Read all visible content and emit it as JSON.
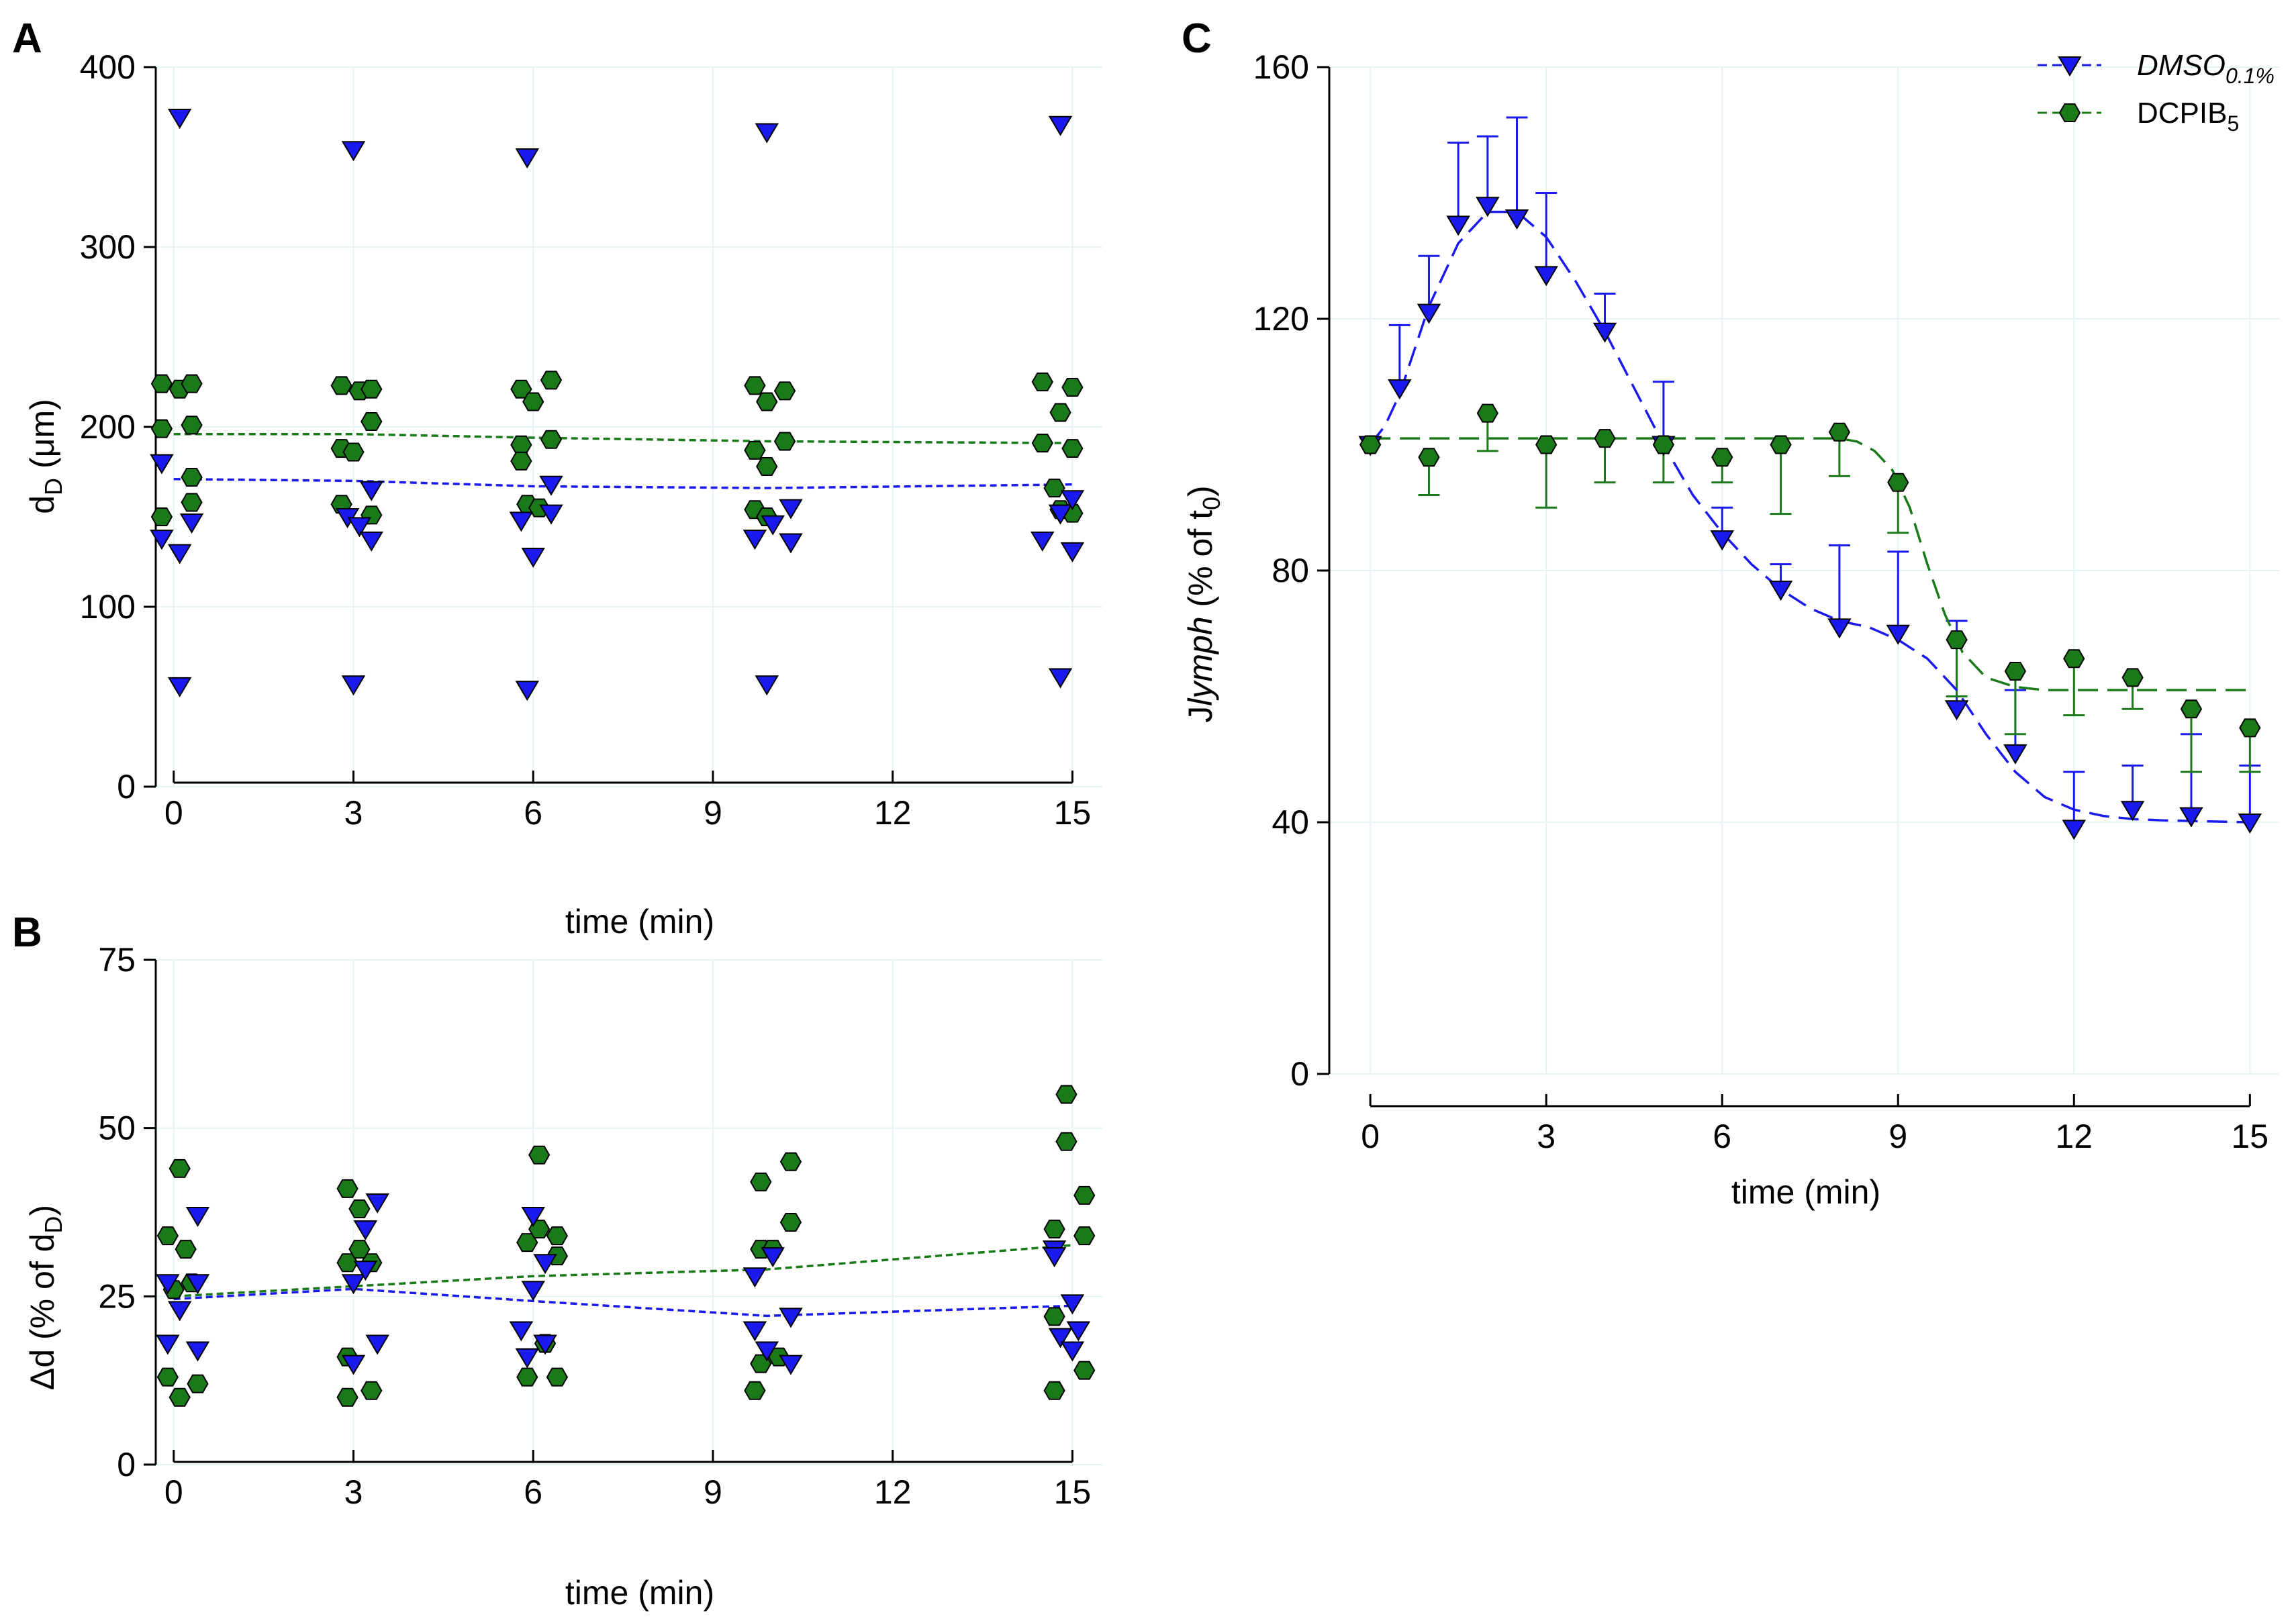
{
  "figure": {
    "panel_labels": [
      "A",
      "B",
      "C"
    ]
  },
  "colors": {
    "dmso": "#1a1aee",
    "dcpib": "#1a7a1a",
    "dmso_line": "#1a1aee",
    "dcpib_line": "#1a7a1a",
    "grid": "#e4f4f4"
  },
  "chart_data": [
    {
      "id": "A",
      "type": "scatter",
      "title": "",
      "xlabel": "time (min)",
      "ylabel_main": "d",
      "ylabel_sub": "D",
      "ylabel_units": "(μm)",
      "xlim": [
        -0.3,
        15.5
      ],
      "ylim": [
        0,
        400
      ],
      "xticks": [
        0,
        3,
        6,
        9,
        12,
        15
      ],
      "yticks": [
        0,
        100,
        200,
        300,
        400
      ],
      "series": [
        {
          "name": "DMSO 0.1%",
          "marker": "triangle",
          "points": [
            [
              0.1,
              372
            ],
            [
              -0.2,
              180
            ],
            [
              -0.2,
              138
            ],
            [
              0.1,
              130
            ],
            [
              0.3,
              147
            ],
            [
              0.1,
              56
            ],
            [
              3.0,
              354
            ],
            [
              2.9,
              150
            ],
            [
              3.1,
              145
            ],
            [
              3.3,
              165
            ],
            [
              3.3,
              137
            ],
            [
              3.0,
              57
            ],
            [
              5.9,
              350
            ],
            [
              5.8,
              148
            ],
            [
              6.0,
              128
            ],
            [
              6.3,
              168
            ],
            [
              6.3,
              152
            ],
            [
              5.9,
              54
            ],
            [
              9.9,
              364
            ],
            [
              9.7,
              138
            ],
            [
              10.0,
              146
            ],
            [
              10.3,
              155
            ],
            [
              10.3,
              136
            ],
            [
              9.9,
              57
            ],
            [
              14.8,
              368
            ],
            [
              14.5,
              137
            ],
            [
              14.8,
              152
            ],
            [
              15.0,
              160
            ],
            [
              15.0,
              131
            ],
            [
              14.8,
              61
            ]
          ]
        },
        {
          "name": "DCPIB 5",
          "marker": "hexagon",
          "points": [
            [
              -0.2,
              224
            ],
            [
              0.1,
              221
            ],
            [
              0.3,
              224
            ],
            [
              -0.2,
              199
            ],
            [
              0.3,
              201
            ],
            [
              0.3,
              172
            ],
            [
              0.3,
              158
            ],
            [
              -0.2,
              150
            ],
            [
              2.8,
              223
            ],
            [
              3.1,
              220
            ],
            [
              3.3,
              221
            ],
            [
              2.8,
              188
            ],
            [
              3.0,
              186
            ],
            [
              3.3,
              203
            ],
            [
              2.8,
              157
            ],
            [
              3.3,
              151
            ],
            [
              5.8,
              221
            ],
            [
              6.0,
              214
            ],
            [
              6.3,
              226
            ],
            [
              5.8,
              190
            ],
            [
              6.3,
              193
            ],
            [
              5.8,
              181
            ],
            [
              5.9,
              157
            ],
            [
              6.1,
              155
            ],
            [
              9.7,
              223
            ],
            [
              9.9,
              214
            ],
            [
              10.2,
              220
            ],
            [
              9.7,
              187
            ],
            [
              10.2,
              192
            ],
            [
              9.9,
              178
            ],
            [
              9.7,
              154
            ],
            [
              9.9,
              150
            ],
            [
              14.5,
              225
            ],
            [
              14.8,
              208
            ],
            [
              15.0,
              222
            ],
            [
              14.5,
              191
            ],
            [
              15.0,
              188
            ],
            [
              14.7,
              166
            ],
            [
              14.8,
              154
            ],
            [
              15.0,
              152
            ]
          ]
        }
      ],
      "trend_lines": [
        {
          "series": "DMSO 0.1%",
          "x": [
            0,
            3,
            6,
            9.9,
            15
          ],
          "y": [
            171,
            170,
            167,
            166,
            168
          ]
        },
        {
          "series": "DCPIB 5",
          "x": [
            0,
            3,
            6,
            9.9,
            15
          ],
          "y": [
            196,
            196,
            194,
            192,
            191
          ]
        }
      ]
    },
    {
      "id": "B",
      "type": "scatter",
      "title": "",
      "xlabel": "time (min)",
      "ylabel_main": "Δd (% of d",
      "ylabel_sub": "D",
      "ylabel_end": ")",
      "xlim": [
        -0.3,
        15.5
      ],
      "ylim": [
        0,
        75
      ],
      "xticks": [
        0,
        3,
        6,
        9,
        12,
        15
      ],
      "yticks": [
        0,
        25,
        50,
        75
      ],
      "series": [
        {
          "name": "DMSO 0.1%",
          "marker": "triangle",
          "points": [
            [
              -0.1,
              27
            ],
            [
              0.1,
              23
            ],
            [
              -0.1,
              18
            ],
            [
              0.4,
              37
            ],
            [
              0.4,
              27
            ],
            [
              0.4,
              17
            ],
            [
              3.0,
              27
            ],
            [
              3.0,
              15
            ],
            [
              3.2,
              35
            ],
            [
              3.4,
              39
            ],
            [
              3.4,
              18
            ],
            [
              3.2,
              29
            ],
            [
              6.0,
              37
            ],
            [
              5.8,
              20
            ],
            [
              5.9,
              16
            ],
            [
              6.2,
              30
            ],
            [
              6.2,
              18
            ],
            [
              6.0,
              26
            ],
            [
              10.0,
              31
            ],
            [
              9.7,
              20
            ],
            [
              9.9,
              17
            ],
            [
              10.3,
              22
            ],
            [
              10.3,
              15
            ],
            [
              9.7,
              28
            ],
            [
              14.7,
              32
            ],
            [
              14.8,
              19
            ],
            [
              15.0,
              24
            ],
            [
              15.1,
              20
            ],
            [
              15.0,
              17
            ],
            [
              14.7,
              31
            ]
          ]
        },
        {
          "name": "DCPIB 5",
          "marker": "hexagon",
          "points": [
            [
              -0.1,
              34
            ],
            [
              0.1,
              44
            ],
            [
              0.2,
              32
            ],
            [
              -0.1,
              13
            ],
            [
              0.1,
              10
            ],
            [
              0.4,
              12
            ],
            [
              0.0,
              26
            ],
            [
              0.3,
              27
            ],
            [
              2.9,
              41
            ],
            [
              3.1,
              38
            ],
            [
              3.3,
              30
            ],
            [
              2.9,
              16
            ],
            [
              2.9,
              10
            ],
            [
              3.3,
              11
            ],
            [
              2.9,
              30
            ],
            [
              3.1,
              32
            ],
            [
              5.9,
              33
            ],
            [
              6.1,
              46
            ],
            [
              6.4,
              34
            ],
            [
              5.9,
              13
            ],
            [
              6.4,
              13
            ],
            [
              6.4,
              31
            ],
            [
              6.1,
              35
            ],
            [
              6.2,
              18
            ],
            [
              9.8,
              42
            ],
            [
              10.3,
              45
            ],
            [
              10.3,
              36
            ],
            [
              9.8,
              15
            ],
            [
              9.7,
              11
            ],
            [
              10.1,
              16
            ],
            [
              9.8,
              32
            ],
            [
              10.0,
              32
            ],
            [
              14.7,
              35
            ],
            [
              14.9,
              55
            ],
            [
              15.2,
              40
            ],
            [
              14.7,
              22
            ],
            [
              14.7,
              11
            ],
            [
              15.2,
              14
            ],
            [
              14.9,
              48
            ],
            [
              15.2,
              34
            ]
          ]
        }
      ],
      "trend_lines": [
        {
          "series": "DMSO 0.1%",
          "x": [
            0,
            3,
            6,
            9.9,
            15
          ],
          "y": [
            24.6,
            26.1,
            24.3,
            22.1,
            23.6
          ]
        },
        {
          "series": "DCPIB 5",
          "x": [
            0,
            3,
            6,
            9.9,
            15
          ],
          "y": [
            25.0,
            26.5,
            28.0,
            29.0,
            32.6
          ]
        }
      ]
    },
    {
      "id": "C",
      "type": "line",
      "title": "",
      "xlabel": "time (min)",
      "ylabel_a": "J",
      "ylabel_b": "lymph",
      "ylabel_c": " (% of t",
      "ylabel_sub": "0",
      "ylabel_d": ")",
      "xlim": [
        -0.7,
        15.5
      ],
      "ylim": [
        0,
        160
      ],
      "xticks": [
        0,
        3,
        6,
        9,
        12,
        15
      ],
      "yticks": [
        0,
        40,
        80,
        120,
        160
      ],
      "legend": {
        "position": "top-right",
        "entries": [
          {
            "label": "DMSO",
            "sub": "0.1%",
            "style": "italic",
            "series": "DMSO 0.1%"
          },
          {
            "label": "DCPIB",
            "sub": "5",
            "style": "normal",
            "series": "DCPIB 5"
          }
        ]
      },
      "series": [
        {
          "name": "DMSO 0.1%",
          "marker": "triangle",
          "error_direction": "up",
          "x": [
            0,
            0.5,
            1,
            1.5,
            2,
            2.5,
            3,
            4,
            5,
            6,
            7,
            8,
            9,
            10,
            11,
            12,
            13,
            14,
            15
          ],
          "y": [
            100,
            109,
            121,
            135,
            138,
            136,
            127,
            118,
            100,
            85,
            77,
            71,
            70,
            58,
            51,
            39,
            42,
            41,
            40
          ],
          "err": [
            0,
            10,
            9,
            13,
            11,
            16,
            13,
            6,
            10,
            5,
            4,
            13,
            13,
            14,
            10,
            9,
            7,
            13,
            9
          ]
        },
        {
          "name": "DCPIB 5",
          "marker": "hexagon",
          "error_direction": "down",
          "x": [
            0,
            1,
            2,
            3,
            4,
            5,
            6,
            7,
            8,
            9,
            10,
            11,
            12,
            13,
            14,
            15
          ],
          "y": [
            100,
            98,
            105,
            100,
            101,
            100,
            98,
            100,
            102,
            94,
            69,
            64,
            66,
            63,
            58,
            55
          ],
          "err": [
            0,
            6,
            6,
            10,
            7,
            6,
            4,
            11,
            7,
            8,
            9,
            10,
            9,
            5,
            10,
            7
          ]
        }
      ],
      "fit_lines": [
        {
          "series": "DMSO 0.1%",
          "x": [
            0,
            0.25,
            0.5,
            0.75,
            1,
            1.5,
            2,
            2.5,
            3,
            3.5,
            4,
            4.5,
            5,
            5.5,
            6,
            6.5,
            7,
            7.5,
            8,
            8.5,
            9,
            9.5,
            10,
            10.5,
            11,
            11.5,
            12,
            12.5,
            13,
            13.5,
            14,
            15
          ],
          "y": [
            100,
            103,
            108,
            115,
            122,
            132,
            137,
            137,
            133,
            126,
            118,
            109,
            100,
            92,
            86,
            81,
            77,
            74,
            72,
            71,
            69,
            66,
            61,
            54,
            48,
            44,
            42,
            41,
            40.5,
            40.3,
            40.2,
            40
          ]
        },
        {
          "series": "DCPIB 5",
          "x": [
            0,
            1,
            2,
            3,
            4,
            5,
            6,
            7,
            8,
            8.3,
            8.6,
            8.9,
            9.2,
            9.5,
            9.8,
            10.1,
            10.5,
            11,
            11.5,
            12,
            13,
            14,
            15
          ],
          "y": [
            101,
            101,
            101,
            101,
            101,
            101,
            101,
            101,
            101,
            100.5,
            99,
            96,
            90,
            81,
            73,
            67,
            63,
            61.5,
            61,
            61,
            61,
            61,
            61
          ]
        }
      ]
    }
  ]
}
